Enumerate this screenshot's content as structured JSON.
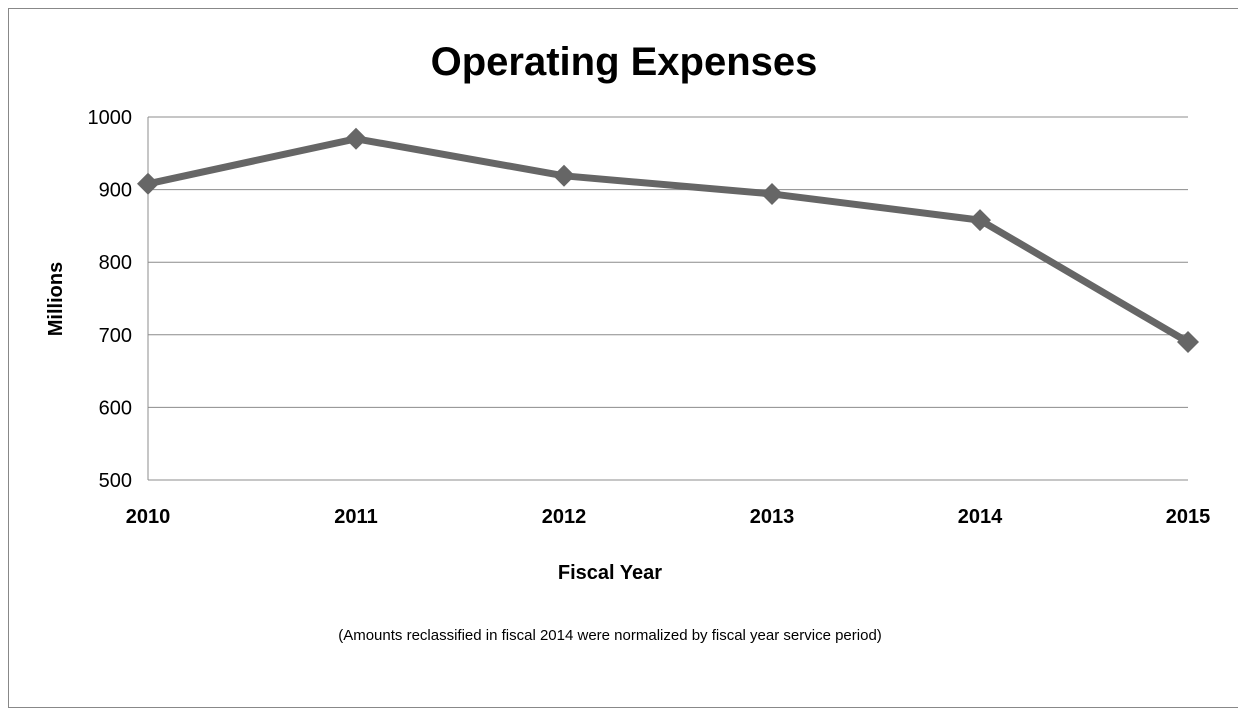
{
  "chart_data": {
    "type": "line",
    "title": "Operating Expenses",
    "xlabel": "Fiscal Year",
    "ylabel": "Millions",
    "categories": [
      "2010",
      "2011",
      "2012",
      "2013",
      "2014",
      "2015"
    ],
    "series": [
      {
        "values": [
          908,
          970,
          919,
          894,
          858,
          690
        ],
        "color": "#666666"
      }
    ],
    "ylim": [
      500,
      1000
    ],
    "yticks": [
      "500",
      "600",
      "700",
      "800",
      "900",
      "1000"
    ],
    "grid": true,
    "legend": "none",
    "marker": "diamond",
    "footnote": "(Amounts reclassified in fiscal 2014 were normalized by fiscal year service period)"
  }
}
